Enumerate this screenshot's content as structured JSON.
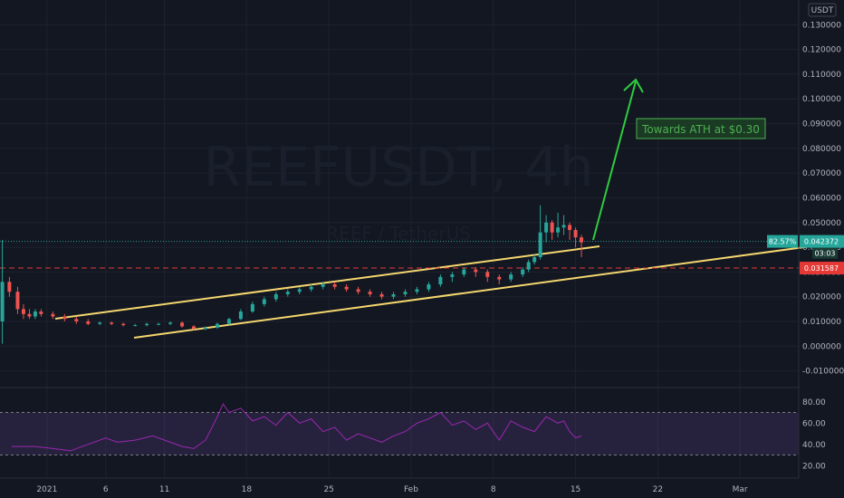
{
  "chart_data": {
    "type": "candlestick",
    "symbol": "REEFUSDT, 4h",
    "description": "REEF / TetherUS",
    "currency": "USDT",
    "price_axis": {
      "ylim": [
        -0.016,
        0.14
      ],
      "ticks": [
        0.13,
        0.12,
        0.11,
        0.1,
        0.09,
        0.08,
        0.07,
        0.06,
        0.05,
        0.04,
        0.03,
        0.02,
        0.01,
        0.0,
        -0.01
      ],
      "tick_labels": [
        "0.130000",
        "0.120000",
        "0.110000",
        "0.100000",
        "0.090000",
        "0.080000",
        "0.070000",
        "0.060000",
        "0.050000",
        "0.040000",
        "0.030000",
        "0.020000",
        "0.010000",
        "0.000000",
        "-0.010000"
      ]
    },
    "x_axis": {
      "labels": [
        "2021",
        "6",
        "11",
        "18",
        "25",
        "Feb",
        "8",
        "15",
        "22",
        "Mar"
      ],
      "label_days": [
        0,
        5,
        10,
        17,
        24,
        31,
        38,
        45,
        52,
        59
      ],
      "range_days": [
        -4,
        64
      ]
    },
    "series": [
      {
        "x": [
          -3.8,
          -3.2,
          -2.5,
          -2.0,
          -1.5,
          -1.0,
          -0.5,
          0.5,
          1.5,
          2.5,
          3.5,
          4.5,
          5.5,
          6.5,
          7.5,
          8.5,
          9.5,
          10.5,
          11.5,
          12.5,
          13.5,
          14.5,
          15.5,
          16.5,
          17.5,
          18.5,
          19.5,
          20.5,
          21.5,
          22.5,
          23.5,
          24.5,
          25.5,
          26.5,
          27.5,
          28.5,
          29.5,
          30.5,
          31.5,
          32.5,
          33.5,
          34.5,
          35.5,
          36.5,
          37.5,
          38.5,
          39.5,
          40.5,
          41.0,
          41.5,
          42.0,
          42.5,
          43.0,
          43.5,
          44.0,
          44.5,
          45.0,
          45.5
        ],
        "close": [
          0.026,
          0.022,
          0.015,
          0.013,
          0.012,
          0.014,
          0.013,
          0.012,
          0.011,
          0.01,
          0.009,
          0.0095,
          0.009,
          0.0085,
          0.0085,
          0.009,
          0.009,
          0.0095,
          0.008,
          0.007,
          0.0075,
          0.009,
          0.011,
          0.014,
          0.017,
          0.019,
          0.021,
          0.022,
          0.023,
          0.024,
          0.025,
          0.024,
          0.023,
          0.022,
          0.021,
          0.02,
          0.021,
          0.022,
          0.023,
          0.025,
          0.028,
          0.029,
          0.031,
          0.03,
          0.028,
          0.027,
          0.029,
          0.031,
          0.034,
          0.036,
          0.046,
          0.05,
          0.046,
          0.048,
          0.049,
          0.047,
          0.044,
          0.042
        ],
        "open": [
          0.01,
          0.026,
          0.022,
          0.015,
          0.013,
          0.012,
          0.014,
          0.013,
          0.012,
          0.011,
          0.01,
          0.009,
          0.0095,
          0.009,
          0.0085,
          0.0085,
          0.009,
          0.009,
          0.0095,
          0.008,
          0.007,
          0.0075,
          0.009,
          0.011,
          0.014,
          0.017,
          0.019,
          0.021,
          0.022,
          0.023,
          0.024,
          0.025,
          0.024,
          0.023,
          0.022,
          0.021,
          0.02,
          0.021,
          0.022,
          0.023,
          0.025,
          0.028,
          0.029,
          0.031,
          0.03,
          0.028,
          0.027,
          0.029,
          0.031,
          0.034,
          0.036,
          0.046,
          0.05,
          0.046,
          0.048,
          0.049,
          0.047,
          0.044
        ],
        "high": [
          0.043,
          0.028,
          0.024,
          0.017,
          0.015,
          0.015,
          0.015,
          0.014,
          0.013,
          0.012,
          0.011,
          0.01,
          0.01,
          0.0095,
          0.009,
          0.0095,
          0.0095,
          0.01,
          0.01,
          0.0085,
          0.008,
          0.0095,
          0.0115,
          0.015,
          0.018,
          0.02,
          0.022,
          0.023,
          0.024,
          0.025,
          0.026,
          0.026,
          0.025,
          0.024,
          0.023,
          0.022,
          0.022,
          0.023,
          0.024,
          0.026,
          0.029,
          0.03,
          0.032,
          0.032,
          0.031,
          0.029,
          0.03,
          0.032,
          0.035,
          0.037,
          0.057,
          0.053,
          0.051,
          0.054,
          0.053,
          0.05,
          0.048,
          0.045
        ],
        "low": [
          0.001,
          0.02,
          0.013,
          0.011,
          0.011,
          0.011,
          0.012,
          0.011,
          0.01,
          0.009,
          0.0085,
          0.0085,
          0.0085,
          0.008,
          0.008,
          0.008,
          0.0085,
          0.0085,
          0.0075,
          0.0065,
          0.0065,
          0.007,
          0.0085,
          0.0105,
          0.0135,
          0.016,
          0.018,
          0.02,
          0.021,
          0.022,
          0.023,
          0.023,
          0.022,
          0.021,
          0.02,
          0.019,
          0.019,
          0.02,
          0.021,
          0.022,
          0.024,
          0.026,
          0.028,
          0.028,
          0.026,
          0.025,
          0.026,
          0.028,
          0.03,
          0.033,
          0.035,
          0.042,
          0.043,
          0.044,
          0.045,
          0.043,
          0.04,
          0.036
        ]
      },
      {
        "name": "RSI",
        "ylim": [
          10,
          90
        ],
        "ticks": [
          80,
          60,
          40,
          20
        ],
        "tick_labels": [
          "80.00",
          "60.00",
          "40.00",
          "20.00"
        ],
        "x": [
          -3.0,
          -1.0,
          0.5,
          2.0,
          3.5,
          5.0,
          6.0,
          7.5,
          9.0,
          10.5,
          11.5,
          12.5,
          13.5,
          14.5,
          15.0,
          15.5,
          16.5,
          17.5,
          18.5,
          19.5,
          20.5,
          21.5,
          22.5,
          23.5,
          24.5,
          25.5,
          26.5,
          27.5,
          28.5,
          29.5,
          30.5,
          31.5,
          32.5,
          33.5,
          34.5,
          35.5,
          36.5,
          37.5,
          38.5,
          39.5,
          40.5,
          41.5,
          42.5,
          43.5,
          44.0,
          44.5,
          45.0,
          45.5
        ],
        "values": [
          38,
          38,
          36,
          34,
          40,
          46,
          42,
          44,
          48,
          42,
          38,
          36,
          44,
          66,
          78,
          70,
          74,
          62,
          66,
          58,
          70,
          60,
          64,
          52,
          56,
          44,
          50,
          46,
          42,
          48,
          52,
          60,
          64,
          70,
          58,
          62,
          54,
          60,
          44,
          62,
          56,
          52,
          66,
          60,
          62,
          52,
          46,
          48
        ]
      }
    ],
    "last_price": {
      "value": 0.042372,
      "label": "0.042372",
      "change_label": "82.57%",
      "countdown": "03:03"
    },
    "level": {
      "value": 0.031587,
      "label": "0.031587"
    },
    "annotation": {
      "text": "Towards ATH at $0.30"
    }
  }
}
